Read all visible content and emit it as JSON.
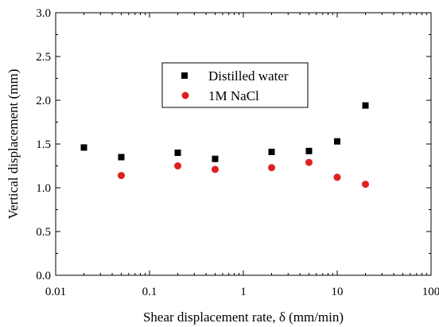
{
  "chart_data": {
    "type": "scatter",
    "xlabel": "Shear displacement rate, δ (mm/min)",
    "ylabel": "Vertical displacement (mm)",
    "xscale": "log",
    "xlim": [
      0.01,
      100
    ],
    "ylim": [
      0.0,
      3.0
    ],
    "xticks": [
      0.01,
      0.1,
      1,
      10,
      100
    ],
    "xtick_labels": [
      "0.01",
      "0.1",
      "1",
      "10",
      "100"
    ],
    "yticks": [
      0.0,
      0.5,
      1.0,
      1.5,
      2.0,
      2.5,
      3.0
    ],
    "ytick_labels": [
      "0.0",
      "0.5",
      "1.0",
      "1.5",
      "2.0",
      "2.5",
      "3.0"
    ],
    "grid": false,
    "legend_position": "upper-center",
    "series": [
      {
        "name": "Distilled water",
        "marker": "square",
        "color": "#000000",
        "x": [
          0.02,
          0.05,
          0.2,
          0.5,
          2,
          5,
          10,
          20
        ],
        "y": [
          1.46,
          1.35,
          1.4,
          1.33,
          1.41,
          1.42,
          1.53,
          1.94
        ]
      },
      {
        "name": "1M NaCl",
        "marker": "circle",
        "color": "#e02020",
        "x": [
          0.05,
          0.2,
          0.5,
          2,
          5,
          10,
          20
        ],
        "y": [
          1.14,
          1.25,
          1.21,
          1.23,
          1.29,
          1.12,
          1.04
        ]
      }
    ]
  }
}
